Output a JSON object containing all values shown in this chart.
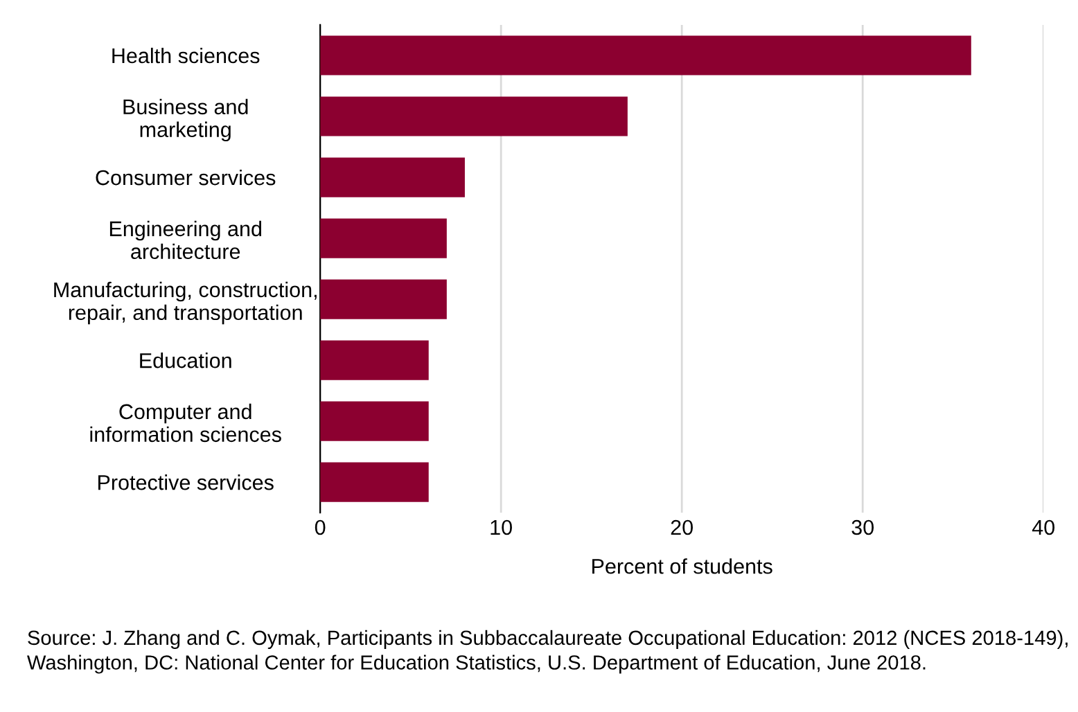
{
  "chart_data": {
    "type": "bar",
    "orientation": "horizontal",
    "xlabel": "Percent of students",
    "categories": [
      "Health sciences",
      "Business and\nmarketing",
      "Consumer services",
      "Engineering and\narchitecture",
      "Manufacturing, construction,\nrepair, and transportation",
      "Education",
      "Computer and\ninformation sciences",
      "Protective services"
    ],
    "values": [
      36,
      17,
      8,
      7,
      7,
      6,
      6,
      6
    ],
    "color": "#8c0030",
    "xlim": [
      0,
      40
    ],
    "xticks": [
      0,
      10,
      20,
      30,
      40
    ],
    "grid": "x",
    "annotations": [
      "Source: J. Zhang and C. Oymak, Participants in Subbaccalaureate Occupational Education: 2012 (NCES 2018-149), Washington, DC: National Center for Education Statistics, U.S. Department of Education, June 2018."
    ]
  }
}
